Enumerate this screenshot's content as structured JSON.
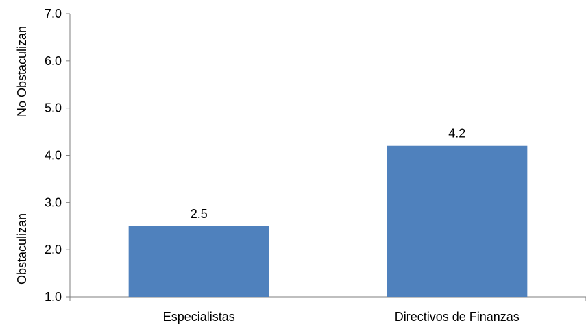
{
  "chart_data": {
    "type": "bar",
    "categories": [
      "Especialistas",
      "Directivos de Finanzas"
    ],
    "values": [
      2.5,
      4.2
    ],
    "data_labels": [
      "2.5",
      "4.2"
    ],
    "ylim": [
      1.0,
      7.0
    ],
    "y_ticks": [
      "1.0",
      "2.0",
      "3.0",
      "4.0",
      "5.0",
      "6.0",
      "7.0"
    ],
    "ylabel_top": "No Obstaculizan",
    "ylabel_bottom": "Obstaculizan",
    "bar_color": "#4f81bd",
    "grid": false,
    "legend": "none"
  }
}
